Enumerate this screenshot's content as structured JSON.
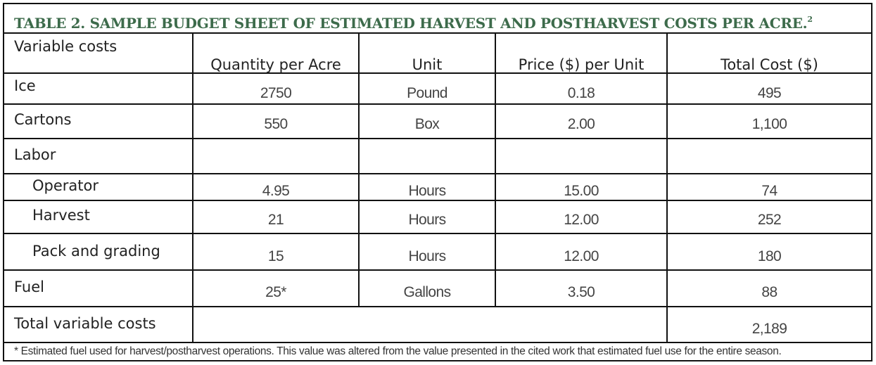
{
  "title": "TABLE 2. SAMPLE BUDGET SHEET OF ESTIMATED HARVEST AND POSTHARVEST COSTS PER ACRE.",
  "title_superscript": "2",
  "columns": [
    "Variable costs",
    "Quantity per Acre",
    "Unit",
    "Price ($) per Unit",
    "Total Cost ($)"
  ],
  "rows": [
    {
      "label": "Ice",
      "quantity": "2750",
      "unit": "Pound",
      "price": "0.18",
      "total": "495"
    },
    {
      "label": "Cartons",
      "quantity": "550",
      "unit": "Box",
      "price": "2.00",
      "total": "1,100"
    },
    {
      "label": "Labor",
      "quantity": "",
      "unit": "",
      "price": "",
      "total": ""
    },
    {
      "label": "Operator",
      "quantity": "4.95",
      "unit": "Hours",
      "price": "15.00",
      "total": "74"
    },
    {
      "label": "Harvest",
      "quantity": "21",
      "unit": "Hours",
      "price": "12.00",
      "total": "252"
    },
    {
      "label": "Pack and grading",
      "quantity": "15",
      "unit": "Hours",
      "price": "12.00",
      "total": "180"
    },
    {
      "label": "Fuel",
      "quantity": "25*",
      "unit": "Gallons",
      "price": "3.50",
      "total": "88"
    }
  ],
  "total_row": {
    "label": "Total variable costs",
    "total": "2,189"
  },
  "footnote": "* Estimated fuel used for harvest/postharvest operations. This value was altered from the value presented in the cited work that estimated fuel use for the entire season.",
  "colors": {
    "title": "#3d6b4b",
    "border": "#111111"
  }
}
